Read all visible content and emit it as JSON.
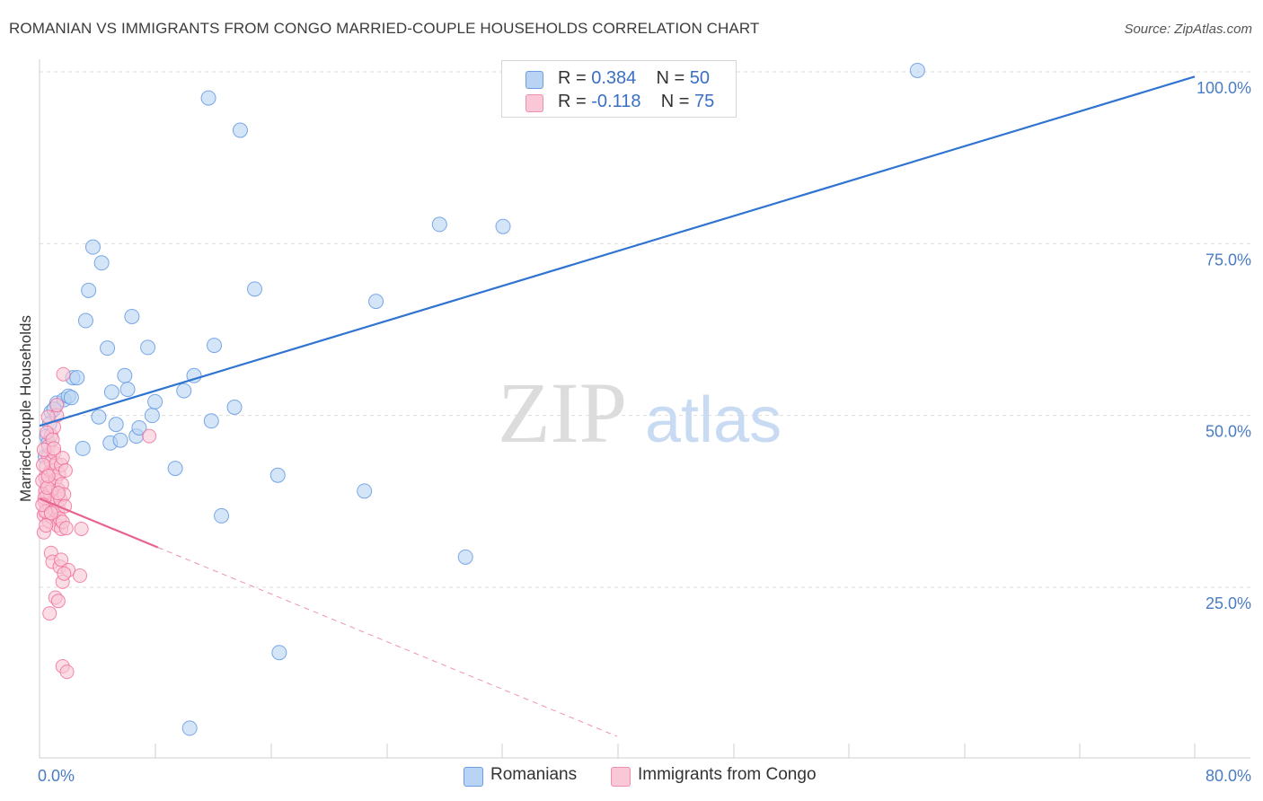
{
  "title": "ROMANIAN VS IMMIGRANTS FROM CONGO MARRIED-COUPLE HOUSEHOLDS CORRELATION CHART",
  "source": "Source: ZipAtlas.com",
  "watermark": {
    "zip": "ZIP",
    "atlas": "atlas"
  },
  "legend": {
    "rows": [
      {
        "r_label": "R = ",
        "r_value": "0.384",
        "n_label": "N = ",
        "n_value": "50",
        "color": "#9ec2ef"
      },
      {
        "r_label": "R = ",
        "r_value": "-0.118",
        "n_label": "N = ",
        "n_value": "75",
        "color": "#f7b8cb"
      }
    ]
  },
  "bottom_legend": [
    {
      "label": "Romanians",
      "color": "#b8d3f4"
    },
    {
      "label": "Immigrants from Congo",
      "color": "#f9c7d6"
    }
  ],
  "chart_data": {
    "type": "scatter",
    "title": "ROMANIAN VS IMMIGRANTS FROM CONGO MARRIED-COUPLE HOUSEHOLDS CORRELATION CHART",
    "ylabel": "Married-couple Households",
    "xlabel": "",
    "xlim": [
      0,
      80
    ],
    "ylim": [
      0,
      102
    ],
    "x_tick_labels": [
      {
        "value": 0,
        "label": "0.0%"
      },
      {
        "value": 80,
        "label": "80.0%"
      }
    ],
    "y_tick_labels": [
      {
        "value": 25,
        "label": "25.0%"
      },
      {
        "value": 50,
        "label": "50.0%"
      },
      {
        "value": 75,
        "label": "75.0%"
      },
      {
        "value": 100,
        "label": "100.0%"
      }
    ],
    "series": [
      {
        "name": "Romanians",
        "color": "#5b93e0",
        "fill": "#b8d3f4",
        "trend": {
          "x0": 0,
          "y0": 48.5,
          "x1": 80,
          "y1": 99.3,
          "style": "solid",
          "color": "#2f74d0"
        },
        "points": [
          [
            0.5,
            47.0
          ],
          [
            0.6,
            46.0
          ],
          [
            0.8,
            50.5
          ],
          [
            1.2,
            51.8
          ],
          [
            1.7,
            52.3
          ],
          [
            2.0,
            52.8
          ],
          [
            2.3,
            55.5
          ],
          [
            2.6,
            55.5
          ],
          [
            3.0,
            45.2
          ],
          [
            3.2,
            63.8
          ],
          [
            3.4,
            68.2
          ],
          [
            3.7,
            74.5
          ],
          [
            4.1,
            49.8
          ],
          [
            4.3,
            72.2
          ],
          [
            4.7,
            59.8
          ],
          [
            4.9,
            46.0
          ],
          [
            5.0,
            53.4
          ],
          [
            5.3,
            48.7
          ],
          [
            5.6,
            46.4
          ],
          [
            5.9,
            55.8
          ],
          [
            6.1,
            53.8
          ],
          [
            6.4,
            64.4
          ],
          [
            6.7,
            47.0
          ],
          [
            6.9,
            48.2
          ],
          [
            7.5,
            59.9
          ],
          [
            7.8,
            50.0
          ],
          [
            8.0,
            52.0
          ],
          [
            9.4,
            42.3
          ],
          [
            10.0,
            53.6
          ],
          [
            10.4,
            4.5
          ],
          [
            10.7,
            55.8
          ],
          [
            11.7,
            96.2
          ],
          [
            11.9,
            49.2
          ],
          [
            12.1,
            60.2
          ],
          [
            12.6,
            35.4
          ],
          [
            13.5,
            51.2
          ],
          [
            13.9,
            91.5
          ],
          [
            14.9,
            68.4
          ],
          [
            16.5,
            41.3
          ],
          [
            16.6,
            15.5
          ],
          [
            22.5,
            39.0
          ],
          [
            23.3,
            66.6
          ],
          [
            27.7,
            77.8
          ],
          [
            29.5,
            29.4
          ],
          [
            32.1,
            77.5
          ],
          [
            60.8,
            100.2
          ],
          [
            0.4,
            44.0
          ],
          [
            0.7,
            48.8
          ],
          [
            1.0,
            50.9
          ],
          [
            2.2,
            52.6
          ]
        ]
      },
      {
        "name": "Immigrants from Congo",
        "color": "#f06a96",
        "fill": "#f9c7d6",
        "trend": {
          "x0": 0,
          "y0": 37.9,
          "x1": 8.2,
          "y1": 30.8,
          "style": "solid",
          "color": "#e8638f",
          "dash_to": {
            "x": 40,
            "y": 3.3
          }
        },
        "points": [
          [
            0.3,
            33.0
          ],
          [
            0.3,
            35.5
          ],
          [
            0.35,
            37.5
          ],
          [
            0.4,
            39.0
          ],
          [
            0.4,
            41.0
          ],
          [
            0.45,
            42.5
          ],
          [
            0.5,
            36.0
          ],
          [
            0.5,
            38.2
          ],
          [
            0.55,
            40.1
          ],
          [
            0.6,
            44.1
          ],
          [
            0.6,
            45.5
          ],
          [
            0.65,
            34.6
          ],
          [
            0.7,
            36.9
          ],
          [
            0.7,
            38.8
          ],
          [
            0.75,
            41.8
          ],
          [
            0.8,
            43.2
          ],
          [
            0.8,
            47.1
          ],
          [
            0.85,
            35.2
          ],
          [
            0.9,
            37.2
          ],
          [
            0.9,
            39.7
          ],
          [
            0.95,
            42.0
          ],
          [
            1.0,
            44.6
          ],
          [
            1.0,
            48.3
          ],
          [
            1.05,
            36.2
          ],
          [
            1.1,
            38.0
          ],
          [
            1.1,
            40.6
          ],
          [
            1.15,
            43.0
          ],
          [
            1.2,
            50.0
          ],
          [
            1.25,
            34.0
          ],
          [
            1.3,
            36.5
          ],
          [
            1.3,
            39.2
          ],
          [
            1.35,
            41.5
          ],
          [
            1.4,
            35.0
          ],
          [
            1.45,
            37.8
          ],
          [
            1.5,
            33.5
          ],
          [
            1.5,
            42.8
          ],
          [
            1.55,
            40.0
          ],
          [
            1.6,
            34.5
          ],
          [
            1.6,
            43.8
          ],
          [
            1.65,
            56.0
          ],
          [
            1.7,
            38.5
          ],
          [
            1.75,
            36.8
          ],
          [
            1.8,
            42.0
          ],
          [
            1.85,
            33.6
          ],
          [
            0.2,
            40.5
          ],
          [
            0.25,
            42.8
          ],
          [
            0.3,
            45.0
          ],
          [
            0.35,
            38.0
          ],
          [
            0.4,
            36.0
          ],
          [
            0.45,
            34.0
          ],
          [
            0.5,
            47.5
          ],
          [
            0.55,
            39.5
          ],
          [
            0.6,
            41.2
          ],
          [
            0.2,
            37.0
          ],
          [
            0.7,
            21.2
          ],
          [
            0.8,
            30.0
          ],
          [
            0.9,
            28.7
          ],
          [
            1.1,
            23.5
          ],
          [
            1.3,
            23.0
          ],
          [
            1.4,
            28.0
          ],
          [
            1.5,
            29.0
          ],
          [
            1.6,
            25.8
          ],
          [
            1.6,
            13.5
          ],
          [
            1.9,
            12.7
          ],
          [
            2.0,
            27.5
          ],
          [
            2.8,
            26.7
          ],
          [
            2.9,
            33.5
          ],
          [
            1.2,
            51.5
          ],
          [
            0.9,
            46.5
          ],
          [
            0.6,
            49.8
          ],
          [
            1.0,
            45.2
          ],
          [
            1.3,
            38.7
          ],
          [
            0.8,
            35.8
          ],
          [
            1.7,
            27.0
          ],
          [
            7.6,
            47.0
          ]
        ]
      }
    ]
  }
}
